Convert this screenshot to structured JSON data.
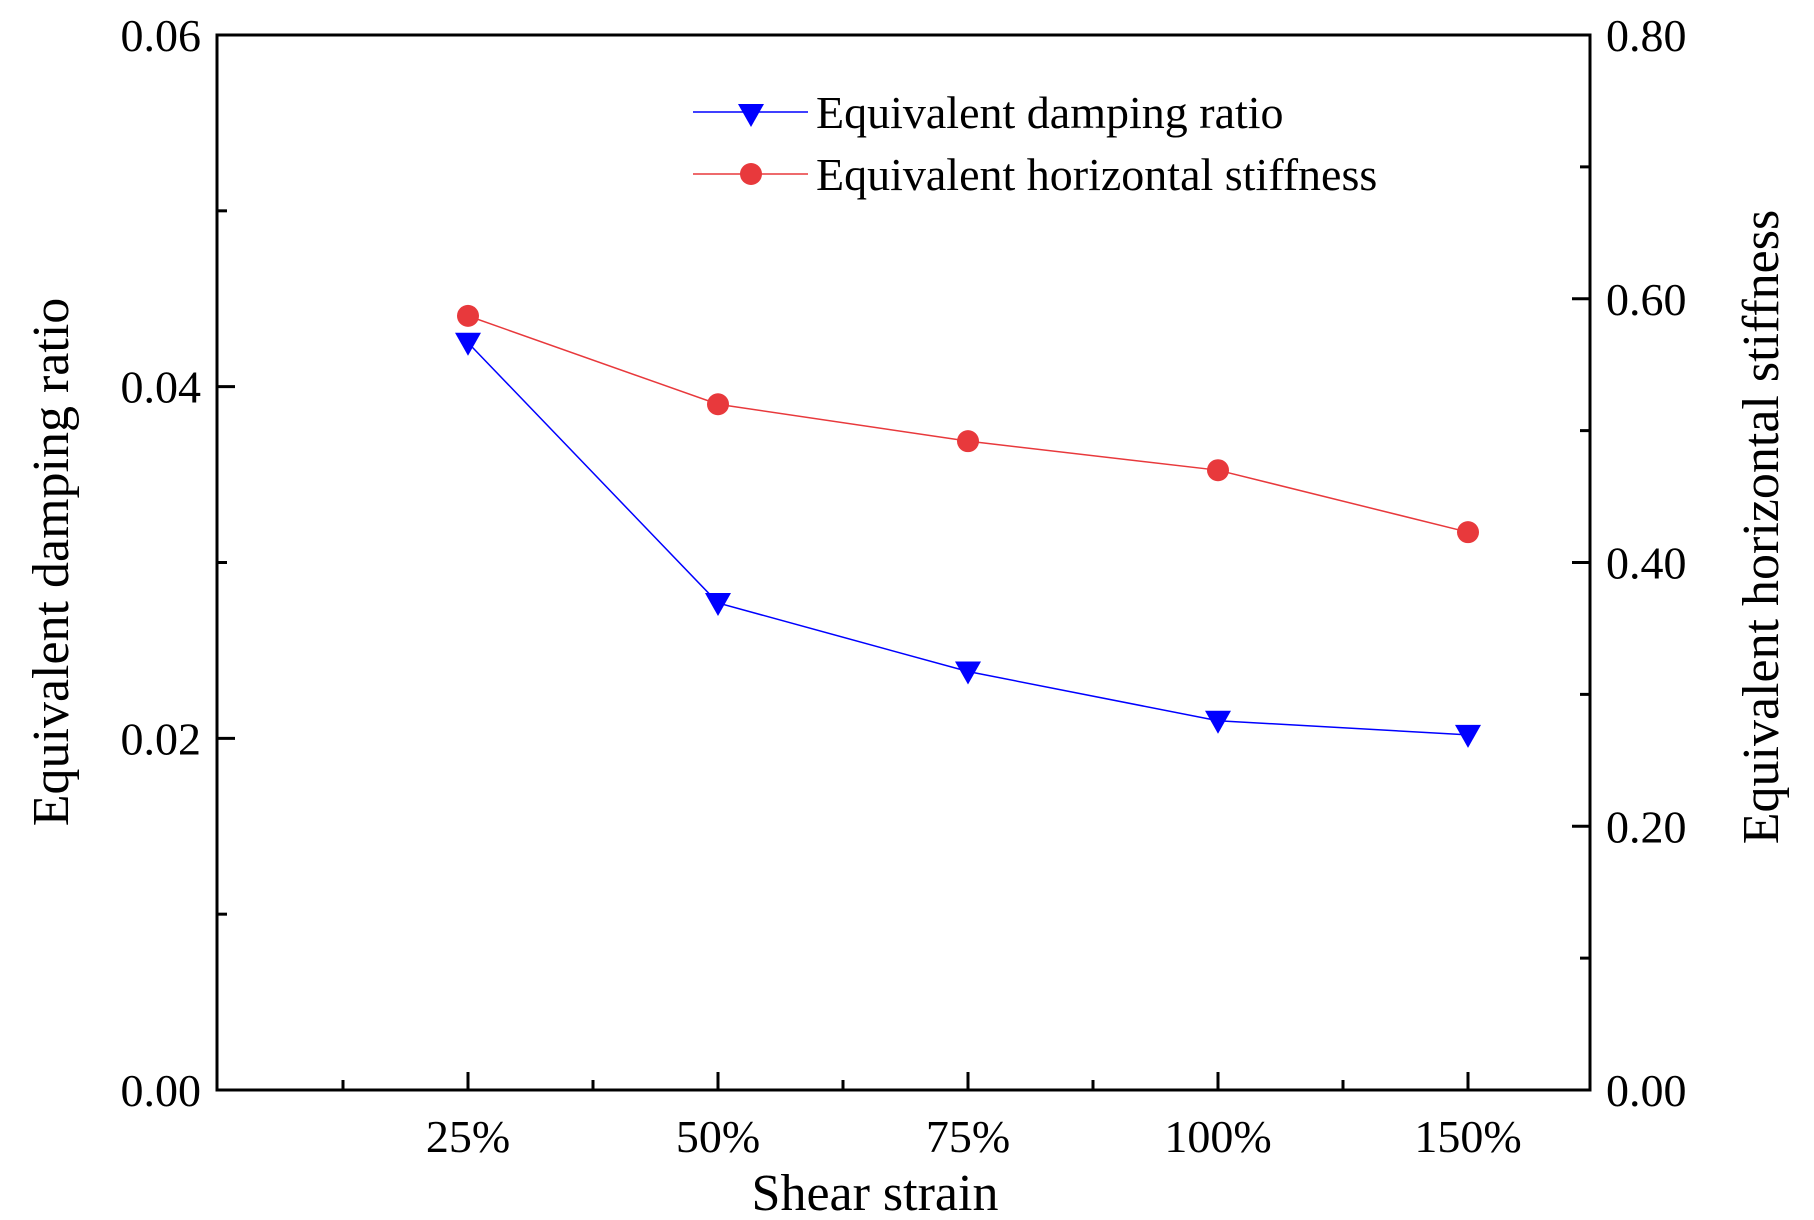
{
  "chart_data": {
    "type": "line",
    "title": "",
    "xlabel": "Shear strain",
    "ylabel": "Equivalent damping ratio",
    "y2label": "Equivalent horizontal stiffness",
    "categories": [
      "25%",
      "50%",
      "75%",
      "100%",
      "150%"
    ],
    "ylim": [
      0,
      0.06
    ],
    "y2lim": [
      0,
      0.8
    ],
    "yticks": [
      "0.00",
      "0.02",
      "0.04",
      "0.06"
    ],
    "y2ticks": [
      "0.00",
      "0.20",
      "0.40",
      "0.60",
      "0.80"
    ],
    "legend_position": "top-center",
    "series": [
      {
        "name": "Equivalent damping ratio",
        "axis": "left",
        "marker": "triangle-down",
        "color": "#0000ff",
        "values": [
          0.0425,
          0.0277,
          0.0238,
          0.021,
          0.0202
        ]
      },
      {
        "name": "Equivalent horizontal stiffness",
        "axis": "right",
        "marker": "circle",
        "color": "#e8393c",
        "values": [
          0.587,
          0.52,
          0.492,
          0.47,
          0.423
        ]
      }
    ]
  }
}
